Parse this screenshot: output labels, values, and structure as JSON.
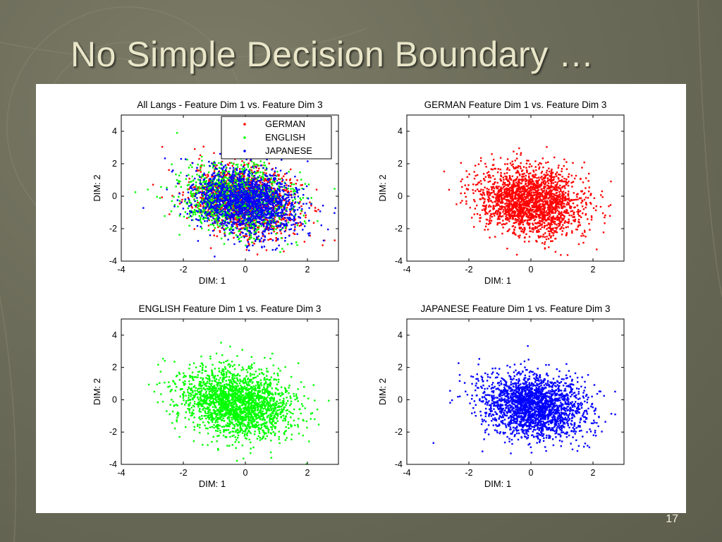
{
  "slide": {
    "title": "No Simple Decision Boundary …",
    "page_number": "17"
  },
  "chart_data": [
    {
      "type": "scatter",
      "title": "All Langs - Feature Dim 1 vs. Feature Dim 3",
      "xlabel": "DIM: 1",
      "ylabel": "DIM: 2",
      "xlim": [
        -4,
        3
      ],
      "ylim": [
        -4,
        5
      ],
      "xticks": [
        -4,
        -2,
        0,
        2
      ],
      "yticks": [
        -4,
        -2,
        0,
        2,
        4
      ],
      "legend_position": "top-right",
      "series": [
        {
          "name": "GERMAN",
          "color": "#ff0000",
          "cx": 0.0,
          "cy": -0.3,
          "sx": 0.85,
          "sy": 1.05,
          "skew": -0.35,
          "n": 1300
        },
        {
          "name": "ENGLISH",
          "color": "#00ff00",
          "cx": -0.3,
          "cy": -0.2,
          "sx": 0.9,
          "sy": 1.05,
          "skew": -0.35,
          "n": 1300
        },
        {
          "name": "JAPANESE",
          "color": "#0000ff",
          "cx": 0.1,
          "cy": -0.4,
          "sx": 0.85,
          "sy": 1.0,
          "skew": -0.35,
          "n": 1600
        }
      ]
    },
    {
      "type": "scatter",
      "title": "GERMAN Feature Dim 1 vs. Feature Dim 3",
      "xlabel": "DIM: 1",
      "ylabel": "DIM: 2",
      "xlim": [
        -4,
        3
      ],
      "ylim": [
        -4,
        5
      ],
      "xticks": [
        -4,
        -2,
        0,
        2
      ],
      "yticks": [
        -4,
        -2,
        0,
        2,
        4
      ],
      "series": [
        {
          "color": "#ff0000",
          "cx": 0.0,
          "cy": -0.3,
          "sx": 0.85,
          "sy": 1.05,
          "skew": -0.35,
          "n": 2200
        }
      ]
    },
    {
      "type": "scatter",
      "title": "ENGLISH Feature Dim 1 vs. Feature Dim 3",
      "xlabel": "DIM: 1",
      "ylabel": "DIM: 2",
      "xlim": [
        -4,
        3
      ],
      "ylim": [
        -4,
        5
      ],
      "xticks": [
        -4,
        -2,
        0,
        2
      ],
      "yticks": [
        -4,
        -2,
        0,
        2,
        4
      ],
      "series": [
        {
          "color": "#00ff00",
          "cx": -0.3,
          "cy": -0.2,
          "sx": 0.9,
          "sy": 1.05,
          "skew": -0.35,
          "n": 2200
        }
      ]
    },
    {
      "type": "scatter",
      "title": "JAPANESE Feature Dim 1 vs. Feature Dim 3",
      "xlabel": "DIM: 1",
      "ylabel": "DIM: 2",
      "xlim": [
        -4,
        3
      ],
      "ylim": [
        -4,
        5
      ],
      "xticks": [
        -4,
        -2,
        0,
        2
      ],
      "yticks": [
        -4,
        -2,
        0,
        2,
        4
      ],
      "series": [
        {
          "color": "#0000ff",
          "cx": 0.1,
          "cy": -0.4,
          "sx": 0.85,
          "sy": 1.0,
          "skew": -0.35,
          "n": 2200
        }
      ]
    }
  ]
}
